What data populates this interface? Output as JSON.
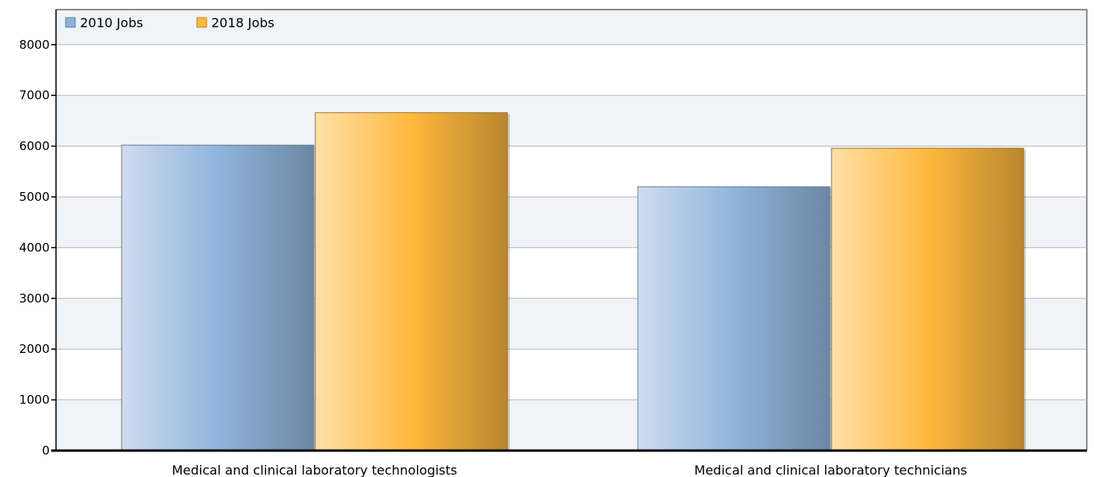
{
  "chart_data": {
    "type": "bar",
    "categories": [
      "Medical and clinical laboratory technologists",
      "Medical and clinical laboratory technicians"
    ],
    "series": [
      {
        "name": "2010 Jobs",
        "values": [
          6020,
          5200
        ],
        "color": "#8eb4dc"
      },
      {
        "name": "2018 Jobs",
        "values": [
          6660,
          5960
        ],
        "color": "#ffb83d"
      }
    ],
    "y_ticks": [
      0,
      1000,
      2000,
      3000,
      4000,
      5000,
      6000,
      7000,
      8000
    ],
    "ylim": [
      0,
      8000
    ],
    "title": "",
    "xlabel": "",
    "ylabel": "",
    "grid": true,
    "legend_position": "top-left"
  }
}
